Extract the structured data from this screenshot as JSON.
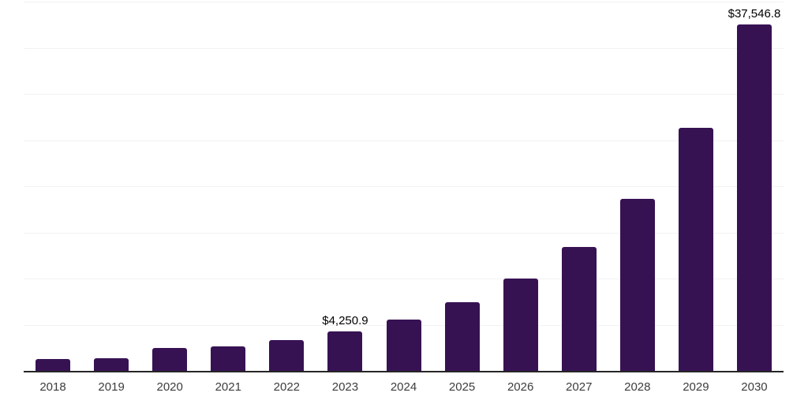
{
  "chart_data": {
    "type": "bar",
    "categories": [
      "2018",
      "2019",
      "2020",
      "2021",
      "2022",
      "2023",
      "2024",
      "2025",
      "2026",
      "2027",
      "2028",
      "2029",
      "2030"
    ],
    "values": [
      1300,
      1410,
      2490,
      2690,
      3310,
      4250.9,
      5520,
      7450,
      10000,
      13450,
      18660,
      26330,
      37546.8
    ],
    "value_labels": [
      "",
      "",
      "",
      "",
      "",
      "$4,250.9",
      "",
      "",
      "",
      "",
      "",
      "",
      "$37,546.8"
    ],
    "title": "",
    "xlabel": "",
    "ylabel": "",
    "ylim": [
      0,
      40000
    ],
    "gridline_step": 5000,
    "grid": true,
    "legend": "none",
    "colors": {
      "bar": "#371253",
      "axis_line": "#262626",
      "gridline": "#f2f2f2",
      "tick_label": "#3d3d3d",
      "data_label": "#000000",
      "background": "#ffffff"
    }
  }
}
